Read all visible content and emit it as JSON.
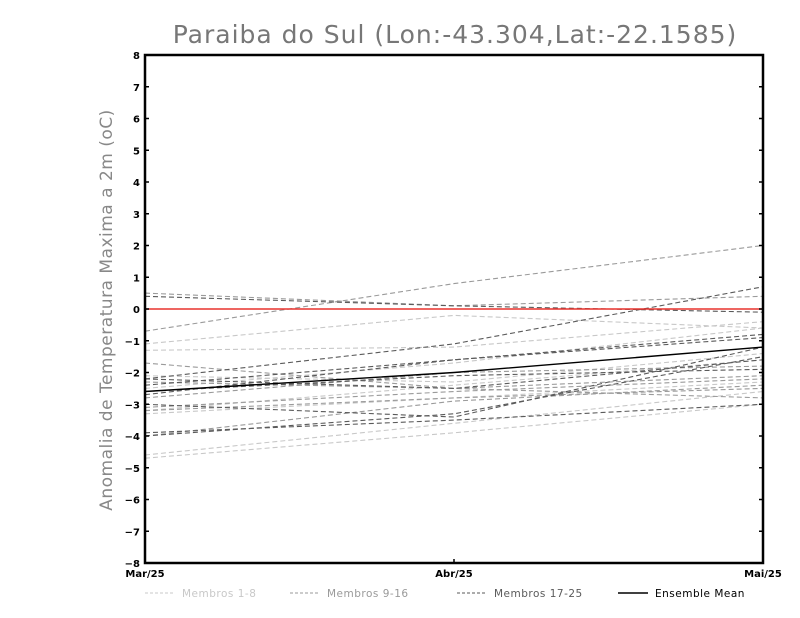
{
  "chart_data": {
    "type": "line",
    "title": "Paraiba do Sul (Lon:-43.304,Lat:-22.1585)",
    "xlabel": "",
    "ylabel": "Anomalia de Temperatura Maxima a 2m (oC)",
    "categories": [
      "Mar/25",
      "Abr/25",
      "Mai/25"
    ],
    "ylim": [
      -8,
      8
    ],
    "yticks": [
      "8",
      "7",
      "6",
      "5",
      "4",
      "3",
      "2",
      "1",
      "0",
      "-1",
      "-2",
      "-3",
      "-4",
      "-5",
      "-6",
      "-7",
      "-8"
    ],
    "reference_line": {
      "y": 0,
      "color": "#e8322d"
    },
    "groups": [
      {
        "name": "Membros 1-8",
        "color": "#c8c8c8",
        "dash": "dashed",
        "series": [
          [
            -4.7,
            -3.9,
            -3.0
          ],
          [
            -4.6,
            -3.6,
            -2.6
          ],
          [
            -3.2,
            -2.4,
            -1.6
          ],
          [
            -3.3,
            -2.8,
            -2.3
          ],
          [
            -1.3,
            -1.2,
            -0.4
          ],
          [
            -1.1,
            -0.2,
            -0.6
          ],
          [
            -2.1,
            -2.3,
            -1.4
          ],
          [
            -2.5,
            -1.7,
            -0.6
          ]
        ]
      },
      {
        "name": "Membros 9-16",
        "color": "#9a9a9a",
        "dash": "dashed",
        "series": [
          [
            -0.7,
            0.8,
            2.0
          ],
          [
            0.5,
            0.1,
            0.4
          ],
          [
            -1.7,
            -2.5,
            -2.1
          ],
          [
            -3.2,
            -2.8,
            -2.5
          ],
          [
            -2.3,
            -2.5,
            -2.8
          ],
          [
            -2.8,
            -2.0,
            -1.8
          ],
          [
            -4.0,
            -2.9,
            -2.4
          ],
          [
            -3.1,
            -2.6,
            -2.2
          ]
        ]
      },
      {
        "name": "Membros 17-25",
        "color": "#5a5a5a",
        "dash": "dashed",
        "series": [
          [
            0.4,
            0.1,
            -0.1
          ],
          [
            -2.2,
            -1.1,
            0.7
          ],
          [
            -4.0,
            -3.3,
            -1.5
          ],
          [
            -3.0,
            -3.4,
            -1.2
          ],
          [
            -2.7,
            -1.6,
            -0.8
          ],
          [
            -2.4,
            -1.6,
            -0.9
          ],
          [
            -3.9,
            -3.5,
            -3.0
          ],
          [
            -2.6,
            -2.1,
            -1.9
          ],
          [
            -2.2,
            -2.5,
            -1.6
          ]
        ]
      },
      {
        "name": "Ensemble Mean",
        "color": "#000000",
        "dash": "solid",
        "series": [
          [
            -2.6,
            -2.0,
            -1.2
          ]
        ]
      }
    ],
    "legend": [
      {
        "label": "Membros 1-8",
        "color": "#c8c8c8",
        "dash": "dashed"
      },
      {
        "label": "Membros 9-16",
        "color": "#9a9a9a",
        "dash": "dashed"
      },
      {
        "label": "Membros 17-25",
        "color": "#5a5a5a",
        "dash": "dashed"
      },
      {
        "label": "Ensemble Mean",
        "color": "#000000",
        "dash": "solid"
      }
    ],
    "legend_position": "bottom",
    "grid": false
  }
}
